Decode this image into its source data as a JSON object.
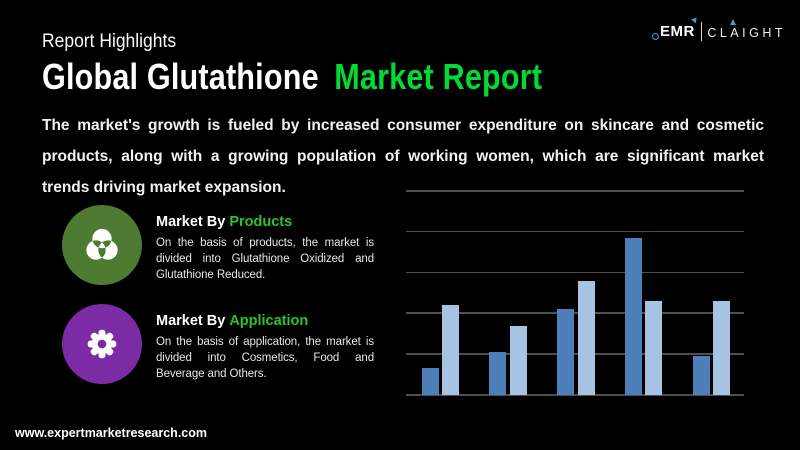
{
  "logo": {
    "brand": "EMR",
    "suffix": "CLAIGHT",
    "accent_color": "#35a3d4"
  },
  "header": {
    "eyebrow": "Report Highlights",
    "title_main": "Global Glutathione",
    "title_accent": "Market Report",
    "accent_color": "#00d936"
  },
  "intro": {
    "text": "The market's growth is fueled by increased consumer expenditure on skincare and cosmetic products, along with a growing population of working women, which are significant market trends driving market expansion.",
    "lines": [
      "The market's growth is fueled by increased consumer expenditure on skincare and cosmetic",
      "products, along with a growing population of working women, which are significant market",
      "trends driving market expansion."
    ]
  },
  "sections": [
    {
      "icon": "venn-diagram-icon",
      "icon_bg": "#4e7b31",
      "title_prefix": "Market By",
      "title_accent": "Products",
      "accent_color": "#2cc42c",
      "body_text": "On the basis of products, the market is divided into Glutathione Oxidized and Glutathione Reduced.",
      "body_lines": [
        "On the basis of products, the market is",
        "divided into Glutathione Oxidized and",
        "Glutathione Reduced."
      ]
    },
    {
      "icon": "gear-icon",
      "icon_bg": "#7b2ba3",
      "title_prefix": "Market By",
      "title_accent": "Application",
      "accent_color": "#2cc42c",
      "body_text": "On the basis of application, the market is divided into Cosmetics, Food and Beverage and Others.",
      "body_lines": [
        "On the basis of application, the market is",
        "divided into Cosmetics, Food and",
        "Beverage and Others."
      ]
    }
  ],
  "footer": {
    "website": "www.expertmarketresearch.com"
  },
  "chart_data": {
    "type": "bar",
    "title": "",
    "xlabel": "",
    "ylabel": "",
    "categories": [
      "",
      "",
      "",
      "",
      ""
    ],
    "series": [
      {
        "name": "series-1",
        "color": "#4d80b9",
        "values": [
          0.65,
          1.05,
          2.1,
          3.85,
          0.95
        ]
      },
      {
        "name": "series-2",
        "color": "#a6c3e3",
        "values": [
          2.2,
          1.7,
          2.8,
          2.3,
          2.3
        ]
      }
    ],
    "ylim": [
      0,
      5
    ],
    "gridlines": 6,
    "grid_color": "#4f4f4f",
    "tick_labels_visible": false,
    "legend": "none"
  }
}
